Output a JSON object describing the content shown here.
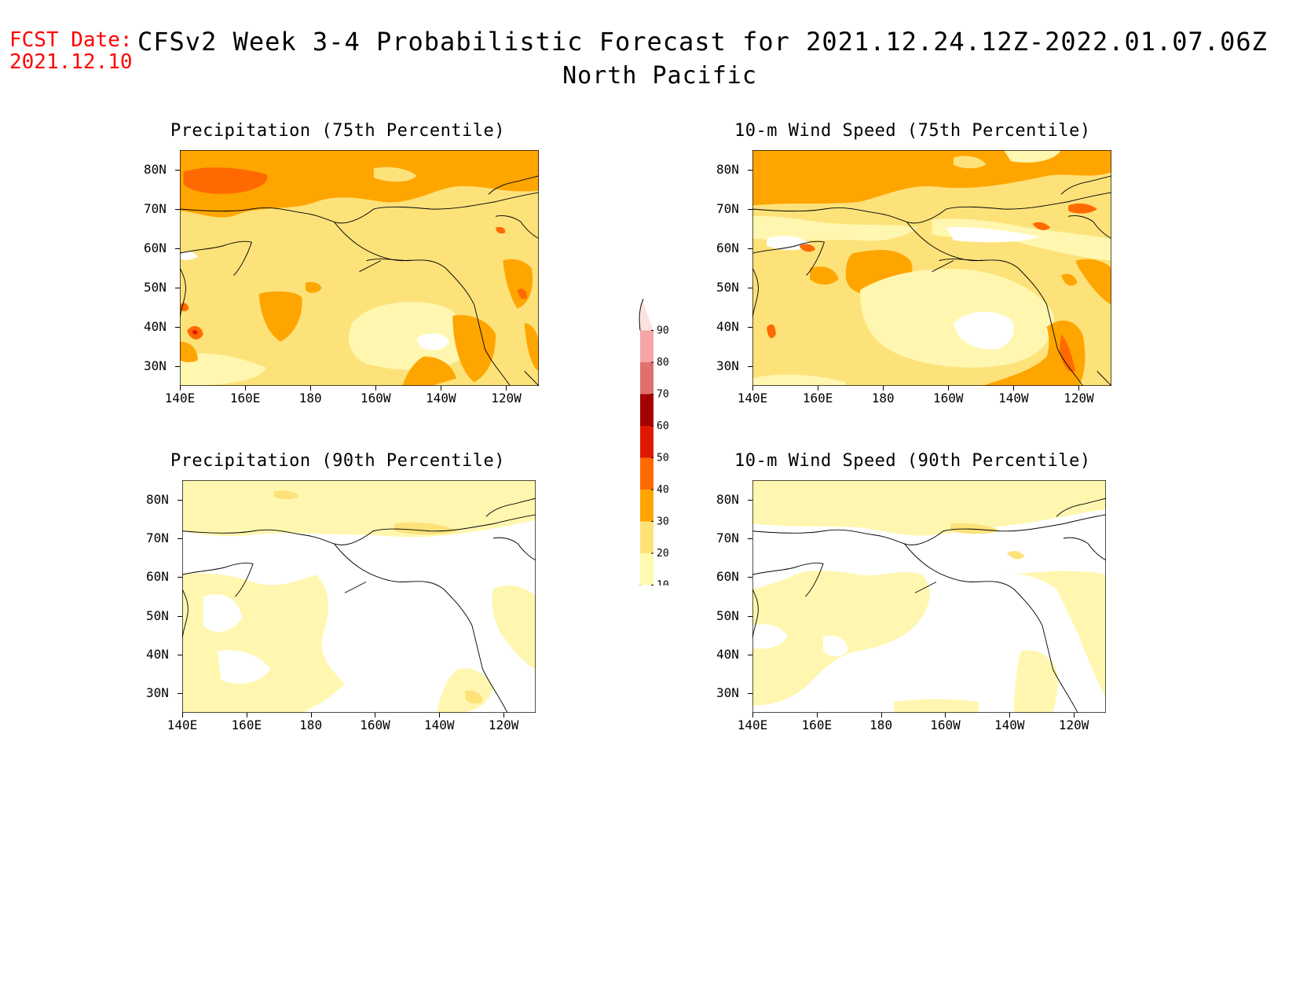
{
  "header": {
    "fcst_label": "FCST Date:",
    "fcst_date": "2021.12.10",
    "title": "CFSv2 Week 3-4 Probabilistic Forecast for 2021.12.24.12Z-2022.01.07.06Z",
    "region": "North Pacific"
  },
  "panels": [
    {
      "id": "precip75",
      "title": "Precipitation (75th Percentile)"
    },
    {
      "id": "wind75",
      "title": "10-m Wind Speed (75th Percentile)"
    },
    {
      "id": "precip90",
      "title": "Precipitation (90th Percentile)"
    },
    {
      "id": "wind90",
      "title": "10-m Wind Speed (90th Percentile)"
    }
  ],
  "axes": {
    "lon_labels": [
      "140E",
      "160E",
      "180",
      "160W",
      "140W",
      "120W"
    ],
    "lat_labels": [
      "80N",
      "70N",
      "60N",
      "50N",
      "40N",
      "30N"
    ]
  },
  "colorbar": {
    "levels": [
      "10",
      "20",
      "30",
      "40",
      "50",
      "60",
      "70",
      "80",
      "90"
    ],
    "colors": [
      "#fffab0",
      "#fde27a",
      "#ffa500",
      "#ff6a00",
      "#e01800",
      "#a50000",
      "#e07070",
      "#f5a5a5",
      "#fde0e0"
    ]
  },
  "palette": {
    "white": "#ffffff",
    "lightyellow": "#fff7b0",
    "yellow": "#fde27a",
    "orange": "#ffa500",
    "darkorange": "#ff6a00",
    "red": "#e01800"
  }
}
